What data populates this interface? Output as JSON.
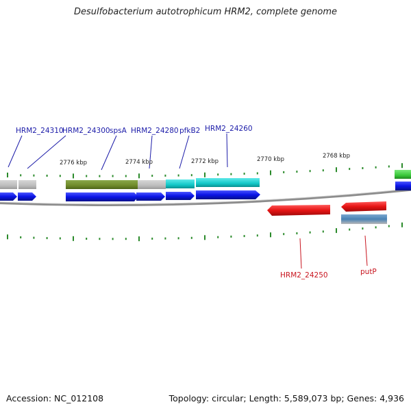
{
  "header": {
    "title": "Desulfobacterium autotrophicum HRM2, complete genome"
  },
  "footer": {
    "accession": "Accession: NC_012108",
    "summary": "Topology: circular; Length: 5,589,073 bp; Genes: 4,936"
  },
  "map": {
    "ticks": [
      {
        "label": "2776 kbp"
      },
      {
        "label": "2774 kbp"
      },
      {
        "label": "2772 kbp"
      },
      {
        "label": "2770 kbp"
      },
      {
        "label": "2768 kbp"
      }
    ],
    "forward_labels": [
      {
        "text": "HRM2_24310"
      },
      {
        "text": "HRM2_24300"
      },
      {
        "text": "spsA"
      },
      {
        "text": "HRM2_24280"
      },
      {
        "text": "pfkB2"
      },
      {
        "text": "HRM2_24260"
      }
    ],
    "reverse_labels": [
      {
        "text": "HRM2_24250"
      },
      {
        "text": "putP"
      }
    ],
    "colors": {
      "forward_label": "#1a1aa8",
      "reverse_label": "#c8141e",
      "forward_arrow": "#0a14e6",
      "reverse_arrow": "#e61414",
      "tick": "#2a8a2a",
      "backbone": "#8c8c8c",
      "cog_gray": "#bdbdbd",
      "cog_olive": "#6f8a2a",
      "cog_cyan": "#12c8c8",
      "cog_green": "#3ac83a",
      "cog_steel": "#4a82b4"
    }
  }
}
